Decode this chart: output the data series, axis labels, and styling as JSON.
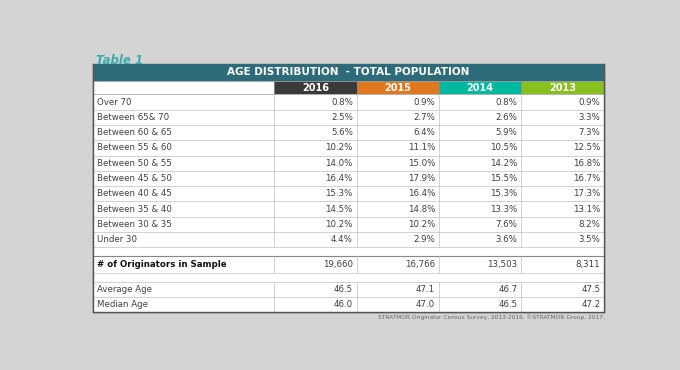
{
  "title": "AGE DISTRIBUTION  - TOTAL POPULATION",
  "table1_label": "Table 1",
  "header_bg": "#2e6b7a",
  "header_text_color": "#ffffff",
  "col_headers": [
    "",
    "2016",
    "2015",
    "2014",
    "2013"
  ],
  "col_colors": [
    "#ffffff",
    "#3a3a3a",
    "#e07820",
    "#00b8a0",
    "#88c020"
  ],
  "col_text_colors": [
    "#000000",
    "#ffffff",
    "#ffffff",
    "#ffffff",
    "#ffffff"
  ],
  "rows": [
    [
      "Over 70",
      "0.8%",
      "0.9%",
      "0.8%",
      "0.9%"
    ],
    [
      "Between 65& 70",
      "2.5%",
      "2.7%",
      "2.6%",
      "3.3%"
    ],
    [
      "Between 60 & 65",
      "5.6%",
      "6.4%",
      "5.9%",
      "7.3%"
    ],
    [
      "Between 55 & 60",
      "10.2%",
      "11.1%",
      "10.5%",
      "12.5%"
    ],
    [
      "Between 50 & 55",
      "14.0%",
      "15.0%",
      "14.2%",
      "16.8%"
    ],
    [
      "Between 45 & 50",
      "16.4%",
      "17.9%",
      "15.5%",
      "16.7%"
    ],
    [
      "Between 40 & 45",
      "15.3%",
      "16.4%",
      "15.3%",
      "17.3%"
    ],
    [
      "Between 35 & 40",
      "14.5%",
      "14.8%",
      "13.3%",
      "13.1%"
    ],
    [
      "Between 30 & 35",
      "10.2%",
      "10.2%",
      "7.6%",
      "8.2%"
    ],
    [
      "Under 30",
      "4.4%",
      "2.9%",
      "3.6%",
      "3.5%"
    ]
  ],
  "separator_row": [
    "",
    "",
    "",
    "",
    ""
  ],
  "bold_row": [
    "# of Originators in Sample",
    "19,660",
    "16,766",
    "13,503",
    "8,311"
  ],
  "separator_row2": [
    "",
    "",
    "",
    "",
    ""
  ],
  "extra_rows": [
    [
      "Average Age",
      "46.5",
      "47.1",
      "46.7",
      "47.5"
    ],
    [
      "Median Age",
      "46.0",
      "47.0",
      "46.5",
      "47.2"
    ]
  ],
  "footer_text": "STRATMOR Originator Census Survey, 2013-2016. ©STRATMOR Group, 2017.",
  "bg_color": "#d4d4d4",
  "table_bg": "#ffffff",
  "row_line_color": "#c0c0c0",
  "label_text_color": "#404040",
  "value_text_color": "#404040",
  "bold_text_color": "#111111",
  "table1_color": "#3aadad",
  "col_sep_color": "#888888",
  "outer_border_color": "#555555"
}
